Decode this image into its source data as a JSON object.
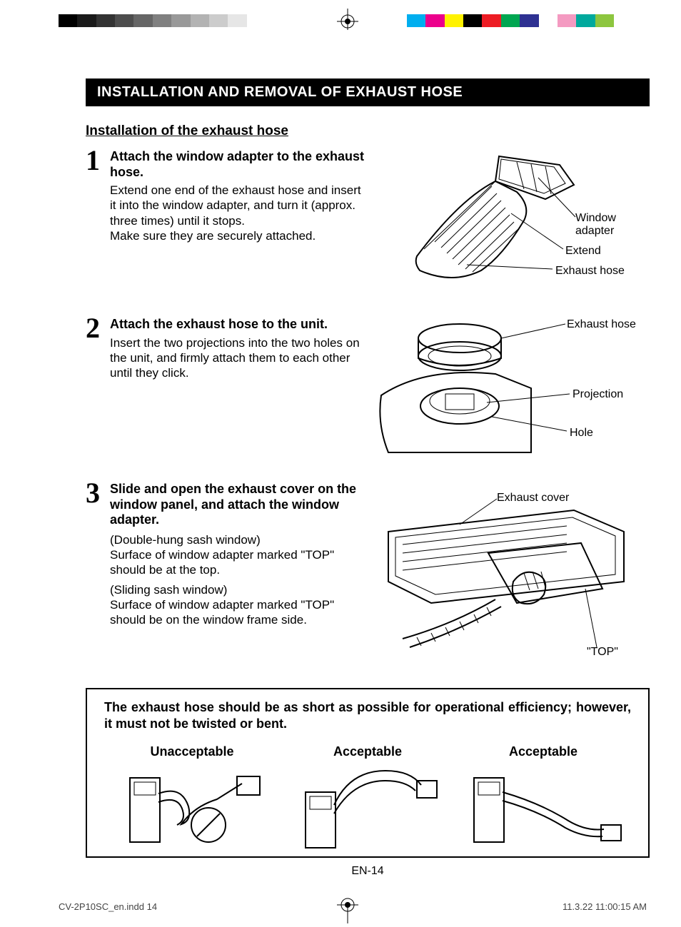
{
  "header": {
    "title": "INSTALLATION AND REMOVAL OF EXHAUST HOSE",
    "subtitle": "Installation of the exhaust hose"
  },
  "color_bars": {
    "left": [
      "#000000",
      "#1a1a1a",
      "#333333",
      "#4d4d4d",
      "#666666",
      "#808080",
      "#999999",
      "#b3b3b3",
      "#cccccc",
      "#e6e6e6",
      "#ffffff"
    ],
    "right": [
      "#00aeef",
      "#ec008c",
      "#fff200",
      "#000000",
      "#ed1c24",
      "#00a651",
      "#2e3192",
      "#ffffff",
      "#f49ac1",
      "#00a99d",
      "#8dc63f"
    ]
  },
  "steps": [
    {
      "num": "1",
      "title": "Attach the window adapter to the exhaust hose.",
      "body": "Extend one end of the exhaust hose and insert it into the window adapter, and turn it (approx. three times) until it stops.\nMake sure they are securely attached.",
      "labels": {
        "a": "Window adapter",
        "b": "Extend",
        "c": "Exhaust hose"
      }
    },
    {
      "num": "2",
      "title": "Attach the exhaust hose to the unit.",
      "body": "Insert the two projections into the two holes on the unit, and firmly attach them to each other until they click.",
      "labels": {
        "a": "Exhaust hose",
        "b": "Projection",
        "c": "Hole"
      }
    },
    {
      "num": "3",
      "title": "Slide and open the exhaust cover on the window panel, and attach the window adapter.",
      "subs": [
        "(Double-hung sash window)\nSurface of window adapter marked \"TOP\" should be at the top.",
        "(Sliding sash window)\nSurface of window adapter marked \"TOP\" should be on the window frame side."
      ],
      "labels": {
        "a": "Exhaust cover",
        "b": "\"TOP\""
      }
    }
  ],
  "note": {
    "text": "The exhaust hose should be as short as possible for operational efficiency; however, it must not be twisted or bent.",
    "examples": [
      "Unacceptable",
      "Acceptable",
      "Acceptable"
    ]
  },
  "footer": {
    "page": "EN-14",
    "file": "CV-2P10SC_en.indd   14",
    "timestamp": "11.3.22   11:00:15 AM"
  }
}
